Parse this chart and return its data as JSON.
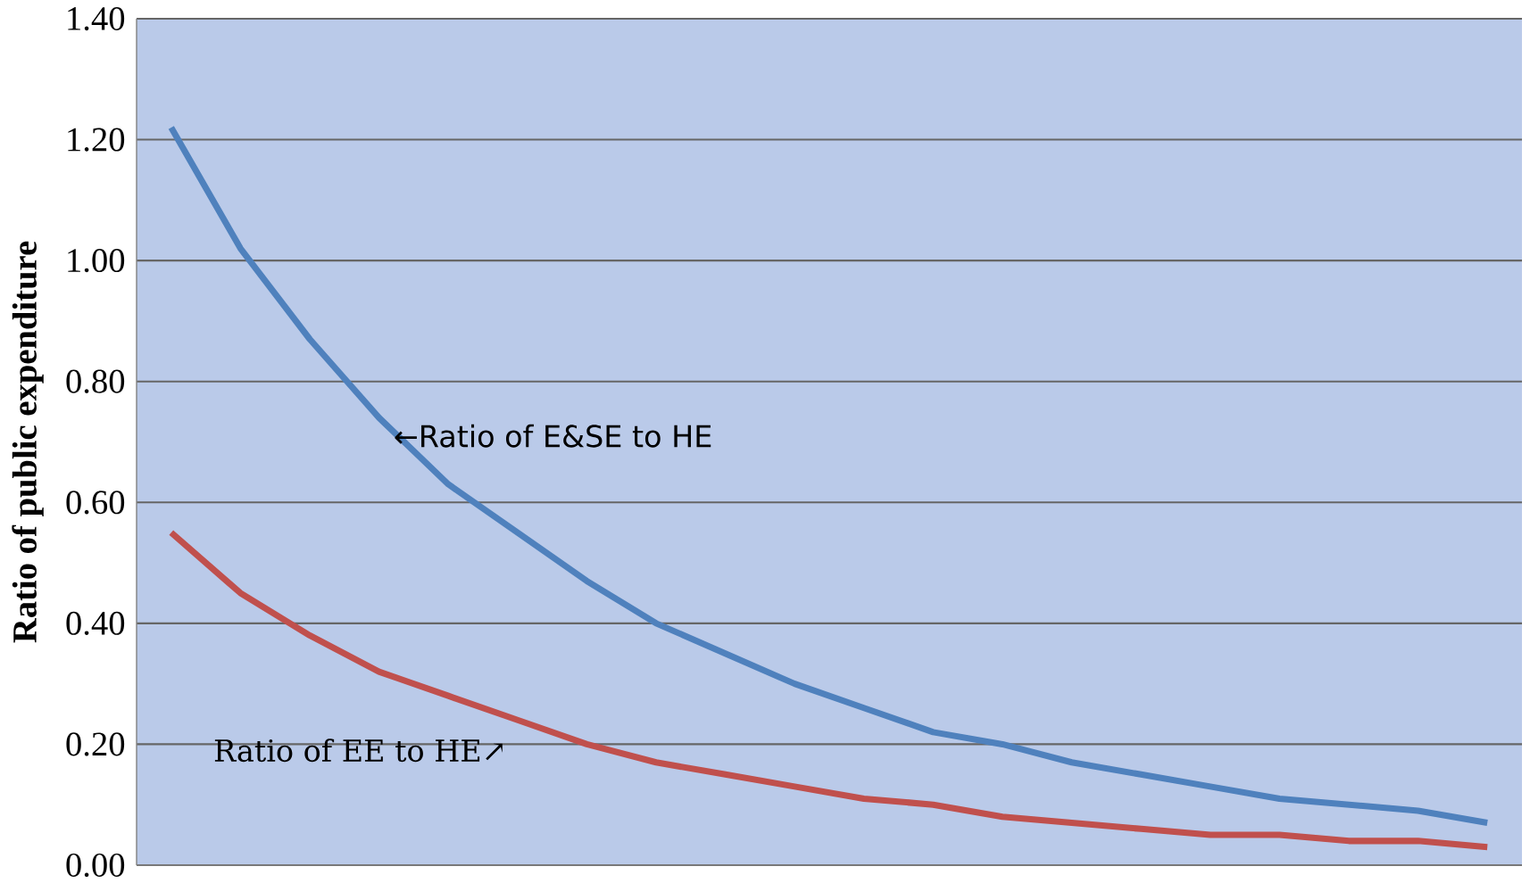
{
  "chart_data": {
    "type": "line",
    "ylabel": "Ratio of public expenditure",
    "categories": [
      null,
      null,
      null,
      null,
      null,
      null,
      null,
      null,
      null,
      null,
      null,
      null,
      null,
      null,
      null,
      null,
      null,
      null,
      null,
      null
    ],
    "series": [
      {
        "color": "#4f81bd",
        "values": [
          1.22,
          1.02,
          0.87,
          0.74,
          0.63,
          0.55,
          0.47,
          0.4,
          0.35,
          0.3,
          0.26,
          0.22,
          0.2,
          0.17,
          0.15,
          0.13,
          0.11,
          0.1,
          0.09,
          0.07
        ]
      },
      {
        "color": "#c0504d",
        "values": [
          0.55,
          0.45,
          0.38,
          0.32,
          0.28,
          0.24,
          0.2,
          0.17,
          0.15,
          0.13,
          0.11,
          0.1,
          0.08,
          0.07,
          0.06,
          0.05,
          0.05,
          0.04,
          0.04,
          0.03
        ]
      }
    ],
    "ylim": [
      0,
      1.4
    ],
    "yticks": [
      {
        "value": 0,
        "label": "0.00"
      },
      {
        "value": 0.2,
        "label": "0.20"
      },
      {
        "value": 0.4,
        "label": "0.40"
      },
      {
        "value": 0.6,
        "label": "0.60"
      },
      {
        "value": 0.8,
        "label": "0.80"
      },
      {
        "value": 1.0,
        "label": "1.00"
      },
      {
        "value": 1.2,
        "label": "1.20"
      },
      {
        "value": 1.4,
        "label": "1.40"
      }
    ],
    "annotations": [
      "←Ratio of E&SE to HE",
      "Ratio of EE to HE↗"
    ],
    "grid": "y",
    "marker": "none",
    "line_style": "solid"
  }
}
